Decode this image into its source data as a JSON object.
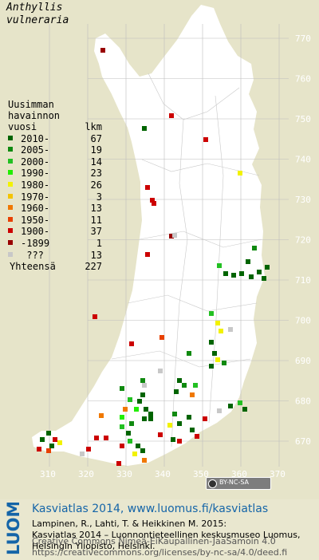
{
  "title": {
    "line1": "Anthyllis",
    "line2": "vulneraria"
  },
  "legend": {
    "head_line1": "Uusimman",
    "head_line2": "havainnon",
    "head_col1": "vuosi",
    "head_col2": "lkm",
    "items": [
      {
        "label": "2010-",
        "count": "67",
        "color": "#006400"
      },
      {
        "label": "2005-",
        "count": "19",
        "color": "#108a10"
      },
      {
        "label": "2000-",
        "count": "14",
        "color": "#22c022"
      },
      {
        "label": "1990-",
        "count": "23",
        "color": "#22ee00"
      },
      {
        "label": "1980-",
        "count": "26",
        "color": "#f2f200"
      },
      {
        "label": "1970-",
        "count": "3",
        "color": "#f4c400"
      },
      {
        "label": "1960-",
        "count": "13",
        "color": "#f07800"
      },
      {
        "label": "1950-",
        "count": "11",
        "color": "#e84000"
      },
      {
        "label": "1900-",
        "count": "37",
        "color": "#cc0000"
      },
      {
        "label": "-1899",
        "count": "1",
        "color": "#990000"
      },
      {
        "label": " ???",
        "count": "13",
        "color": "#c8c8c8"
      }
    ],
    "total_label": "Yhteensä",
    "total_count": "227"
  },
  "axes": {
    "y_ticks": [
      "770",
      "760",
      "750",
      "740",
      "730",
      "720",
      "710",
      "700",
      "690",
      "680",
      "670"
    ],
    "x_ticks": [
      "310",
      "320",
      "330",
      "340",
      "350",
      "360",
      "370"
    ]
  },
  "colors": {
    "land": "#ffffff",
    "background": "#e6e4c9",
    "grid": "#bdbdbd",
    "accent": "#1565a8"
  },
  "badge": {
    "text": "BY-NC-SA"
  },
  "logo": {
    "text": "LUOMUS"
  },
  "source": {
    "title": "Kasviatlas 2014, www.luomus.fi/kasviatlas",
    "cite1": "Lampinen, R., Lahti, T. & Heikkinen M. 2015:",
    "cite2": "Kasviatlas 2014 – Luonnontieteellinen keskusmuseo Luomus,",
    "cite3": "Helsingin Yliopisto, Helsinki.",
    "license1": "Creative Commons Nimeä-EiKaupallinen-JaaSamoin 4.0",
    "license2": "https://creativecommons.org/licenses/by-nc-sa/4.0/deed.fi"
  }
}
